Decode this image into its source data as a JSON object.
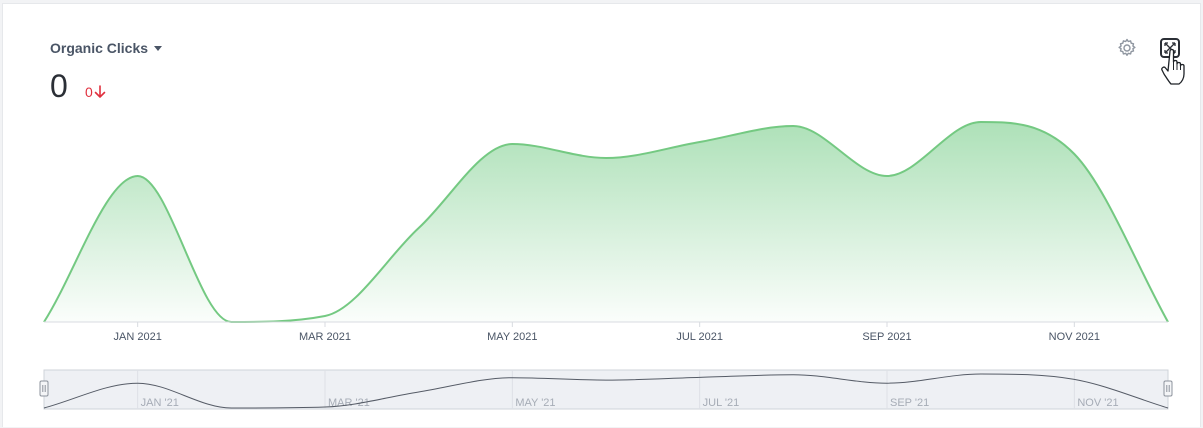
{
  "widget": {
    "metric_label": "Organic Clicks",
    "value": "0",
    "delta": "0"
  },
  "icons": {
    "dropdown": "caret-down-icon",
    "delta": "arrow-down-icon",
    "settings": "gear-icon",
    "expand": "expand-icon",
    "cursor": "hand-pointer-icon"
  },
  "colors": {
    "line": "#74c982",
    "fill": "#a9dfb4",
    "delta_down": "#e0303e",
    "navigator_line": "#555b66"
  },
  "chart_data": {
    "type": "area",
    "x": [
      "2020-12",
      "2021-01",
      "2021-02",
      "2021-03",
      "2021-04",
      "2021-05",
      "2021-06",
      "2021-07",
      "2021-08",
      "2021-09",
      "2021-10",
      "2021-11",
      "2021-12"
    ],
    "values": [
      0,
      73,
      0,
      3,
      47,
      89,
      82,
      90,
      98,
      73,
      100,
      84,
      0
    ],
    "xticks": [
      "JAN 2021",
      "MAR 2021",
      "MAY 2021",
      "JUL 2021",
      "SEP 2021",
      "NOV 2021"
    ],
    "navigator_ticks": [
      "JAN '21",
      "MAR '21",
      "MAY '21",
      "JUL '21",
      "SEP '21",
      "NOV '21"
    ],
    "grid": false,
    "legend": "none"
  }
}
